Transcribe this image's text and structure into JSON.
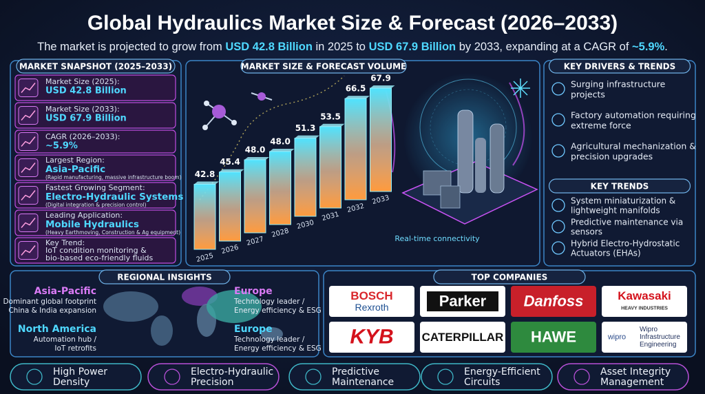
{
  "header": {
    "title": "Global Hydraulics Market Size & Forecast (2026–2033)",
    "subtitle": [
      "The market is projected to grow from ",
      "USD 42.8 Billion",
      " in 2025 to ",
      "USD 67.9 Billion",
      " by 2033, expanding at a CAGR of ",
      "~5.9%",
      "."
    ]
  },
  "snapshot": {
    "title": "MARKET SNAPSHOT (2025–2033)",
    "items": [
      {
        "label": "Market Size (2025):",
        "value": "USD 42.8 Billion"
      },
      {
        "label": "Market Size (2033):",
        "value": "USD 67.9 Billion"
      },
      {
        "label": "CAGR (2026–2033):",
        "value": "~5.9%"
      },
      {
        "label": "Largest Region:",
        "value": "Asia-Pacific",
        "note": "(Rapid manufacturing, massive infrastructure boom)"
      },
      {
        "label": "Fastest Growing Segment:",
        "value": "Electro-Hydraulic Systems",
        "note": "(Digital integration & precision control)"
      },
      {
        "label": "Leading Application:",
        "value": "Mobile Hydraulics",
        "note": "(Heavy Earthmoving, Construction & Ag equipment)"
      },
      {
        "label": "Key Trend:",
        "lines": [
          "IoT condition monitoring &",
          "bio-based eco-friendly fluids"
        ]
      }
    ]
  },
  "chart_data": {
    "type": "bar",
    "title": "MARKET SIZE & FORECAST VOLUME",
    "categories": [
      "2025",
      "2026",
      "2027",
      "2028",
      "2030",
      "2031",
      "2032",
      "2033"
    ],
    "values": [
      42.8,
      45.4,
      48.0,
      48.0,
      51.3,
      53.5,
      66.5,
      67.9
    ],
    "value_labels": [
      "42.8",
      "45.4",
      "48.0",
      "48.0",
      "51.3",
      "53.5",
      "66.5",
      "67.9"
    ],
    "annotation": "Real-time connectivity"
  },
  "drivers": {
    "title": "KEY DRIVERS & TRENDS",
    "items": [
      [
        "Surging infrastructure",
        "projects"
      ],
      [
        "Factory automation requiring",
        "extreme force"
      ],
      [
        "Agricultural mechanization &",
        "precision upgrades"
      ]
    ]
  },
  "trends": {
    "title": "KEY TRENDS",
    "items": [
      [
        "System miniaturization &",
        "lightweight manifolds"
      ],
      [
        "Predictive maintenance via",
        "sensors"
      ],
      [
        "Hybrid Electro-Hydrostatic",
        "Actuators (EHAs)"
      ]
    ]
  },
  "regional": {
    "title": "REGIONAL INSIGHTS",
    "regions": [
      {
        "name": "Asia-Pacific",
        "lines": [
          "Dominant global footprint",
          "China & India expansion"
        ]
      },
      {
        "name": "North America",
        "lines": [
          "Automation hub /",
          "IoT retrofits"
        ]
      },
      {
        "name": "Europe",
        "lines": [
          "Technology leader /",
          "Energy efficiency & ESG"
        ]
      },
      {
        "name": "Europe",
        "lines": [
          "Technology leader /",
          "Energy efficiency & ESG"
        ]
      }
    ]
  },
  "companies": {
    "title": "TOP COMPANIES",
    "logos": [
      {
        "lines": [
          "BOSCH",
          "Rexroth"
        ]
      },
      {
        "lines": [
          "Parker"
        ]
      },
      {
        "lines": [
          "Danfoss"
        ]
      },
      {
        "lines": [
          "Kawasaki",
          "HEAVY INDUSTRIES"
        ]
      },
      {
        "lines": [
          "KYB"
        ]
      },
      {
        "lines": [
          "CATERPILLAR"
        ]
      },
      {
        "lines": [
          "HAWE"
        ]
      },
      {
        "lines": [
          "wipro",
          "Wipro",
          "Infrastructure",
          "Engineering"
        ]
      }
    ]
  },
  "features": [
    [
      "High Power",
      "Density"
    ],
    [
      "Electro-Hydraulic",
      "Precision"
    ],
    [
      "Predictive",
      "Maintenance"
    ],
    [
      "Energy-Efficient",
      "Circuits"
    ],
    [
      "Asset Integrity",
      "Management"
    ]
  ]
}
